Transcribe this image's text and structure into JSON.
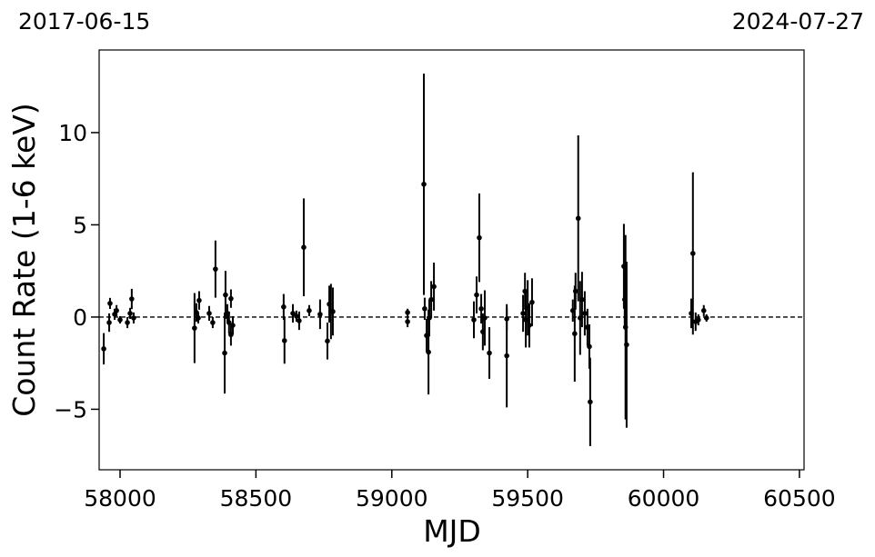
{
  "chart_data": {
    "type": "errorbar",
    "date_left": "2017-06-15",
    "date_right": "2024-07-27",
    "xlabel": "MJD",
    "ylabel": "Count Rate (1-6 keV)",
    "xlim": [
      57923,
      60517
    ],
    "ylim": [
      -8.28,
      14.48
    ],
    "xticks": [
      58000,
      58500,
      59000,
      59500,
      60000,
      60500
    ],
    "yticks": [
      {
        "value": -5,
        "label": "−5"
      },
      0,
      5,
      10
    ],
    "reference_line": 0,
    "series": [
      {
        "color": "#000000",
        "x": [
          57940,
          57960,
          57963,
          57980,
          57987,
          58000,
          58027,
          58037,
          58043,
          58050,
          58274,
          58281,
          58291,
          58288,
          58328,
          58341,
          58351,
          58385,
          58388,
          58395,
          58401,
          58408,
          58408,
          58415,
          58602,
          58605,
          58636,
          58649,
          58659,
          58676,
          58696,
          58736,
          58763,
          58770,
          58776,
          58783,
          59058,
          59058,
          59118,
          59121,
          59128,
          59135,
          59138,
          59145,
          59155,
          59302,
          59312,
          59322,
          59329,
          59335,
          59342,
          59359,
          59423,
          59423,
          59483,
          59490,
          59493,
          59500,
          59506,
          59516,
          59666,
          59673,
          59676,
          59686,
          59693,
          59700,
          59710,
          59720,
          59727,
          59730,
          59854,
          59857,
          59860,
          59864,
          60108,
          60102,
          60118,
          60128,
          60148,
          60158
        ],
        "values": [
          -1.72,
          -0.3,
          0.74,
          0.15,
          0.35,
          -0.15,
          -0.3,
          0.2,
          0.98,
          -0.05,
          -0.6,
          0.25,
          0.9,
          -0.05,
          0.2,
          -0.3,
          2.6,
          -1.95,
          1.2,
          0.2,
          -0.3,
          1.0,
          -0.95,
          -0.45,
          0.55,
          -1.28,
          0.2,
          0.05,
          -0.2,
          3.78,
          0.35,
          0.15,
          -1.3,
          0.7,
          0.3,
          0.3,
          0.25,
          -0.25,
          7.2,
          0.45,
          -1.0,
          -1.9,
          -0.05,
          0.95,
          1.65,
          -0.15,
          1.2,
          4.3,
          0.45,
          -0.8,
          -0.05,
          -1.95,
          -0.1,
          -2.1,
          0.2,
          1.4,
          -0.15,
          0.5,
          -0.45,
          0.8,
          0.35,
          -0.9,
          1.4,
          5.35,
          -0.05,
          0.95,
          0.2,
          -0.55,
          -1.6,
          -4.6,
          2.75,
          0.95,
          -0.55,
          -1.5,
          3.45,
          0.2,
          -0.25,
          -0.15,
          0.35,
          -0.05
        ],
        "errors": [
          0.85,
          0.5,
          0.3,
          0.3,
          0.3,
          0.2,
          0.3,
          0.3,
          0.55,
          0.3,
          1.9,
          0.5,
          0.5,
          0.3,
          0.4,
          0.3,
          1.55,
          2.2,
          1.3,
          0.5,
          0.6,
          0.5,
          0.6,
          0.5,
          0.7,
          1.25,
          0.5,
          0.3,
          0.5,
          2.65,
          0.3,
          0.8,
          1.0,
          1.0,
          1.5,
          1.3,
          0.2,
          0.3,
          6.0,
          0.6,
          0.9,
          2.3,
          1.0,
          1.0,
          1.3,
          1.0,
          1.0,
          2.4,
          0.8,
          1.0,
          1.5,
          1.4,
          0.6,
          2.8,
          1.0,
          1.0,
          1.5,
          1.5,
          1.2,
          1.3,
          0.6,
          2.6,
          1.0,
          4.5,
          2.0,
          1.5,
          1.2,
          1.0,
          1.2,
          2.4,
          2.3,
          1.5,
          5.0,
          4.5,
          4.4,
          0.8,
          0.5,
          0.3,
          0.3,
          0.2
        ]
      }
    ]
  }
}
